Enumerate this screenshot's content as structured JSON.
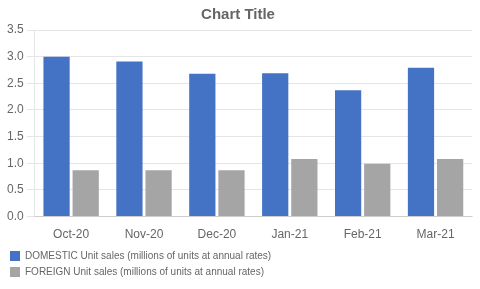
{
  "chart_data": {
    "type": "bar",
    "title": "Chart Title",
    "categories": [
      "Oct-20",
      "Nov-20",
      "Dec-20",
      "Jan-21",
      "Feb-21",
      "Mar-21"
    ],
    "series": [
      {
        "name": "DOMESTIC Unit sales (millions of units at annual rates)",
        "color": "#4472C4",
        "values": [
          3.0,
          2.91,
          2.68,
          2.69,
          2.37,
          2.79
        ]
      },
      {
        "name": "FOREIGN Unit sales (millions of units at annual rates)",
        "color": "#A5A5A5",
        "values": [
          0.87,
          0.87,
          0.87,
          1.08,
          0.99,
          1.08
        ]
      }
    ],
    "ylim": [
      0,
      3.5
    ],
    "yticks": [
      {
        "value": 0,
        "label": "0.0"
      },
      0.5,
      {
        "value": 1,
        "label": "1.0"
      },
      1.5,
      {
        "value": 2,
        "label": "2.0"
      },
      2.5,
      {
        "value": 3,
        "label": "3.0"
      },
      3.5
    ],
    "grid": true,
    "legend": "bottom"
  }
}
